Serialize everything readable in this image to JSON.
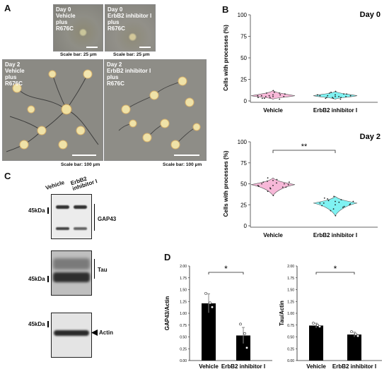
{
  "panels": {
    "A": "A",
    "B": "B",
    "C": "C",
    "D": "D"
  },
  "panelA": {
    "micrographs": [
      {
        "label": "Day 0\nVehicle\nplus\nR676C",
        "scale": "Scale bar: 25 μm"
      },
      {
        "label": "Day 0\nErbB2 inhibitor I\nplus\nR676C",
        "scale": "Scale bar: 25 μm"
      },
      {
        "label": "Day 2\nVehicle\nplus\nR676C",
        "scale": "Scale bar: 100 μm"
      },
      {
        "label": "Day 2\nErbB2 inhibitor I\nplus\nR676C",
        "scale": "Scale bar: 100 μm"
      }
    ]
  },
  "panelC": {
    "lanes": [
      "Vehicle",
      "ErbB2\ninhibitor I"
    ],
    "blots": [
      {
        "mw": "45kDa",
        "protein": "GAP43"
      },
      {
        "mw": "45kDa",
        "protein": "Tau"
      },
      {
        "mw": "45kDa",
        "protein": "Actin"
      }
    ]
  },
  "chart_data": [
    {
      "type": "violin",
      "title": "Day 0",
      "ylabel": "Cells with processes (%)",
      "yticks": [
        0,
        25,
        50,
        75,
        100
      ],
      "ylim": [
        0,
        100
      ],
      "categories": [
        "Vehicle",
        "ErbB2 inhibitor I"
      ],
      "colors": [
        "#f7b8d8",
        "#7ff2f2"
      ],
      "centers": [
        6,
        6
      ],
      "points": [
        [
          3,
          4,
          5,
          6,
          7,
          8,
          9,
          10,
          2,
          5,
          7,
          4,
          6,
          9,
          3,
          5,
          8,
          6,
          12
        ],
        [
          3,
          4,
          5,
          6,
          7,
          8,
          9,
          5,
          2,
          6,
          4,
          7,
          3,
          8,
          10,
          5,
          6,
          4,
          11
        ]
      ]
    },
    {
      "type": "violin",
      "title": "Day 2",
      "ylabel": "Cells with processes (%)",
      "yticks": [
        0,
        25,
        50,
        75,
        100
      ],
      "ylim": [
        0,
        100
      ],
      "categories": [
        "Vehicle",
        "ErbB2 inhibitor I"
      ],
      "colors": [
        "#f7b8d8",
        "#7ff2f2"
      ],
      "centers": [
        49,
        27
      ],
      "significance": "**",
      "points": [
        [
          41,
          44,
          46,
          47,
          48,
          49,
          50,
          51,
          52,
          53,
          55,
          57,
          45,
          50,
          48,
          54,
          46,
          52,
          36
        ],
        [
          18,
          20,
          22,
          24,
          25,
          26,
          27,
          28,
          29,
          30,
          31,
          33,
          35,
          23,
          27,
          29,
          25,
          32,
          12
        ]
      ]
    },
    {
      "type": "bar",
      "ylabel": "GAP43/Actin",
      "yticks": [
        "0.00",
        "0.25",
        "0.50",
        "0.75",
        "1.00",
        "1.25",
        "1.50",
        "1.75",
        "2.00"
      ],
      "ylim": [
        0,
        2
      ],
      "categories": [
        "Vehicle",
        "ErbB2 inhibitor I"
      ],
      "values": [
        1.21,
        0.53
      ],
      "errors": [
        0.2,
        0.17
      ],
      "points": [
        [
          1.42,
          1.22,
          1.13
        ],
        [
          0.77,
          0.57,
          0.27
        ]
      ],
      "significance": "*"
    },
    {
      "type": "bar",
      "ylabel": "Tau/Actin",
      "yticks": [
        "0.00",
        "0.25",
        "0.50",
        "0.75",
        "1.00",
        "1.25",
        "1.50",
        "1.75",
        "2.00"
      ],
      "ylim": [
        0,
        2
      ],
      "categories": [
        "Vehicle",
        "ErbB2 inhibitor I"
      ],
      "values": [
        0.74,
        0.55
      ],
      "errors": [
        0.05,
        0.05
      ],
      "points": [
        [
          0.79,
          0.75,
          0.72
        ],
        [
          0.61,
          0.56,
          0.52
        ]
      ],
      "significance": "*"
    }
  ]
}
